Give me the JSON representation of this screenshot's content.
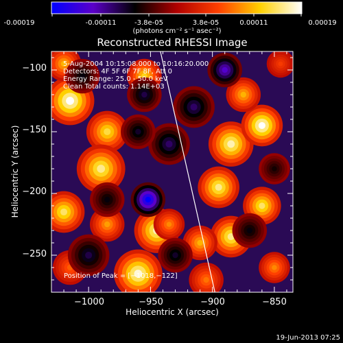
{
  "colorbar": {
    "tick_labels": [
      "-0.00019",
      "-0.00011",
      "-3.8e-05",
      "3.8e-05",
      "0.00011",
      "0.00019"
    ],
    "units_label": "(photons cm⁻² s⁻¹ asec⁻²)",
    "range": [
      -0.00019,
      0.00019
    ],
    "colormap": [
      "#0000ff",
      "#5b00c8",
      "#000000",
      "#b00000",
      "#ff4000",
      "#ffd000",
      "#ffffff"
    ]
  },
  "chart_data": {
    "type": "heatmap",
    "title": "Reconstructed RHESSI Image",
    "xlabel": "Heliocentric X (arcsec)",
    "ylabel": "Heliocentric Y (arcsec)",
    "xlim": [
      -1030,
      -835
    ],
    "ylim": [
      -280,
      -85
    ],
    "x_ticks": [
      -1000,
      -950,
      -900,
      -850
    ],
    "x_tick_labels": [
      "−1000",
      "−950",
      "−900",
      "−850"
    ],
    "y_ticks": [
      -100,
      -150,
      -200,
      -250
    ],
    "y_tick_labels": [
      "−100",
      "−150",
      "−200",
      "−250"
    ],
    "annotations": [
      "5-Aug-2004 10:15:08.000 to 10:16:20.000",
      "Detectors: 4F 5F 6F 7F 8F, Att 0",
      "Energy Range: 25.0 - 50.0 keV",
      "Clean    Total counts: 1.14E+03"
    ],
    "peak_label": "Position of Peak = [−1018,−122]",
    "peak": [
      -1018,
      -122
    ],
    "limb_line": [
      [
        -942,
        -85
      ],
      [
        -898,
        -280
      ]
    ],
    "blobs": [
      {
        "x": -1015,
        "y": -125,
        "v": 1.0,
        "r": 14
      },
      {
        "x": -1020,
        "y": -95,
        "v": 0.6,
        "r": 10
      },
      {
        "x": -985,
        "y": -150,
        "v": 0.75,
        "r": 12
      },
      {
        "x": -990,
        "y": -180,
        "v": 0.85,
        "r": 14
      },
      {
        "x": -1020,
        "y": -215,
        "v": 0.8,
        "r": 12
      },
      {
        "x": -985,
        "y": -225,
        "v": 0.55,
        "r": 10
      },
      {
        "x": -1015,
        "y": -260,
        "v": 0.4,
        "r": 10
      },
      {
        "x": -945,
        "y": -230,
        "v": 0.9,
        "r": 13
      },
      {
        "x": -960,
        "y": -265,
        "v": 0.95,
        "r": 14
      },
      {
        "x": -955,
        "y": -105,
        "v": 0.7,
        "r": 10
      },
      {
        "x": -935,
        "y": -225,
        "v": 0.5,
        "r": 9
      },
      {
        "x": -905,
        "y": -270,
        "v": 0.45,
        "r": 10
      },
      {
        "x": -895,
        "y": -195,
        "v": 0.85,
        "r": 12
      },
      {
        "x": -885,
        "y": -160,
        "v": 0.9,
        "r": 13
      },
      {
        "x": -860,
        "y": -145,
        "v": 1.0,
        "r": 12
      },
      {
        "x": -875,
        "y": -120,
        "v": 0.6,
        "r": 10
      },
      {
        "x": -860,
        "y": -210,
        "v": 0.8,
        "r": 11
      },
      {
        "x": -885,
        "y": -235,
        "v": 0.85,
        "r": 12
      },
      {
        "x": -910,
        "y": -240,
        "v": 0.6,
        "r": 10
      },
      {
        "x": -850,
        "y": -260,
        "v": 0.5,
        "r": 9
      },
      {
        "x": -845,
        "y": -95,
        "v": 0.3,
        "r": 8
      },
      {
        "x": -952,
        "y": -205,
        "v": -1.0,
        "r": 10
      },
      {
        "x": -890,
        "y": -100,
        "v": -0.7,
        "r": 10
      },
      {
        "x": -955,
        "y": -120,
        "v": -0.45,
        "r": 10
      },
      {
        "x": -935,
        "y": -160,
        "v": -0.5,
        "r": 12
      },
      {
        "x": -915,
        "y": -130,
        "v": -0.5,
        "r": 12
      },
      {
        "x": -870,
        "y": -230,
        "v": -0.35,
        "r": 10
      },
      {
        "x": -1000,
        "y": -250,
        "v": -0.45,
        "r": 12
      },
      {
        "x": -985,
        "y": -205,
        "v": -0.35,
        "r": 10
      },
      {
        "x": -1005,
        "y": -105,
        "v": -0.35,
        "r": 10
      },
      {
        "x": -930,
        "y": -250,
        "v": -0.4,
        "r": 10
      },
      {
        "x": -960,
        "y": -150,
        "v": -0.4,
        "r": 10
      },
      {
        "x": -850,
        "y": -180,
        "v": -0.3,
        "r": 9
      }
    ]
  },
  "footer": {
    "timestamp": "19-Jun-2013 07:25"
  }
}
